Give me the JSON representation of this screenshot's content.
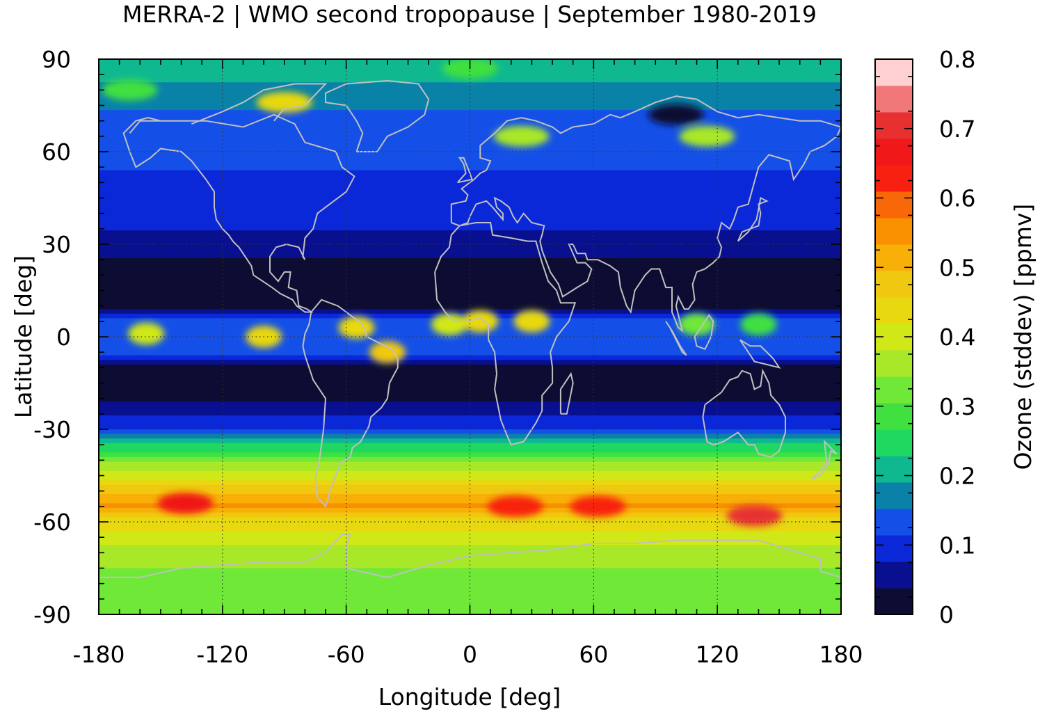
{
  "chart_data": {
    "type": "heatmap",
    "title": "MERRA-2 | WMO second tropopause | September 1980-2019",
    "xlabel": "Longitude [deg]",
    "ylabel": "Latitude [deg]",
    "colorbar_label": "Ozone (stddev) [ppmv]",
    "xlim": [
      -180,
      180
    ],
    "ylim": [
      -90,
      90
    ],
    "x_ticks": [
      -180,
      -120,
      -60,
      0,
      60,
      120,
      180
    ],
    "x_tick_labels": [
      "-180",
      "-120",
      "-60",
      "0",
      "60",
      "120",
      "180"
    ],
    "y_ticks": [
      90,
      60,
      30,
      0,
      -30,
      -60,
      -90
    ],
    "y_tick_labels": [
      "90",
      "60",
      "30",
      "0",
      "-30",
      "-60",
      "-90"
    ],
    "colorbar_range": [
      0,
      0.8
    ],
    "colorbar_ticks": [
      0.8,
      0.7,
      0.6,
      0.5,
      0.4,
      0.3,
      0.2,
      0.1,
      0
    ],
    "colorbar_tick_labels": [
      "0.8",
      "0.7",
      "0.6",
      "0.5",
      "0.4",
      "0.3",
      "0.2",
      "0.1",
      "0"
    ],
    "colorbar_colors": [
      "#0d0d33",
      "#081090",
      "#0a28d8",
      "#1450e8",
      "#0a82a8",
      "#10b890",
      "#1ed860",
      "#40e040",
      "#70e838",
      "#a8e828",
      "#d0e818",
      "#e8d810",
      "#f0c810",
      "#f8b008",
      "#f89000",
      "#f86808",
      "#f82010",
      "#f01818",
      "#e83030",
      "#f07878",
      "#ffd0d0"
    ],
    "zonal_profile_latitudes": [
      90,
      80,
      70,
      60,
      50,
      40,
      30,
      20,
      10,
      5,
      0,
      -5,
      -10,
      -20,
      -30,
      -40,
      -50,
      -55,
      -60,
      -70,
      -80,
      -90
    ],
    "zonal_profile_values": [
      0.22,
      0.18,
      0.14,
      0.12,
      0.11,
      0.1,
      0.05,
      0.02,
      0.02,
      0.12,
      0.15,
      0.12,
      0.02,
      0.03,
      0.12,
      0.33,
      0.48,
      0.55,
      0.44,
      0.36,
      0.33,
      0.32
    ],
    "anomalies": [
      {
        "lon": -138,
        "lat": -54,
        "value": 0.66
      },
      {
        "lon": 22,
        "lat": -55,
        "value": 0.64
      },
      {
        "lon": 62,
        "lat": -55,
        "value": 0.62
      },
      {
        "lon": 138,
        "lat": -58,
        "value": 0.72
      },
      {
        "lon": -55,
        "lat": 3,
        "value": 0.42
      },
      {
        "lon": -40,
        "lat": -5,
        "value": 0.48
      },
      {
        "lon": -10,
        "lat": 4,
        "value": 0.4
      },
      {
        "lon": 5,
        "lat": 5,
        "value": 0.45
      },
      {
        "lon": 30,
        "lat": 5,
        "value": 0.42
      },
      {
        "lon": -157,
        "lat": 1,
        "value": 0.4
      },
      {
        "lon": -100,
        "lat": 0,
        "value": 0.45
      },
      {
        "lon": 110,
        "lat": 4,
        "value": 0.32
      },
      {
        "lon": 140,
        "lat": 4,
        "value": 0.3
      },
      {
        "lon": 100,
        "lat": 72,
        "value": 0.02
      },
      {
        "lon": 115,
        "lat": 65,
        "value": 0.38
      },
      {
        "lon": 25,
        "lat": 65,
        "value": 0.35
      },
      {
        "lon": -90,
        "lat": 76,
        "value": 0.42
      },
      {
        "lon": -165,
        "lat": 80,
        "value": 0.3
      },
      {
        "lon": 0,
        "lat": 87,
        "value": 0.3
      }
    ]
  }
}
